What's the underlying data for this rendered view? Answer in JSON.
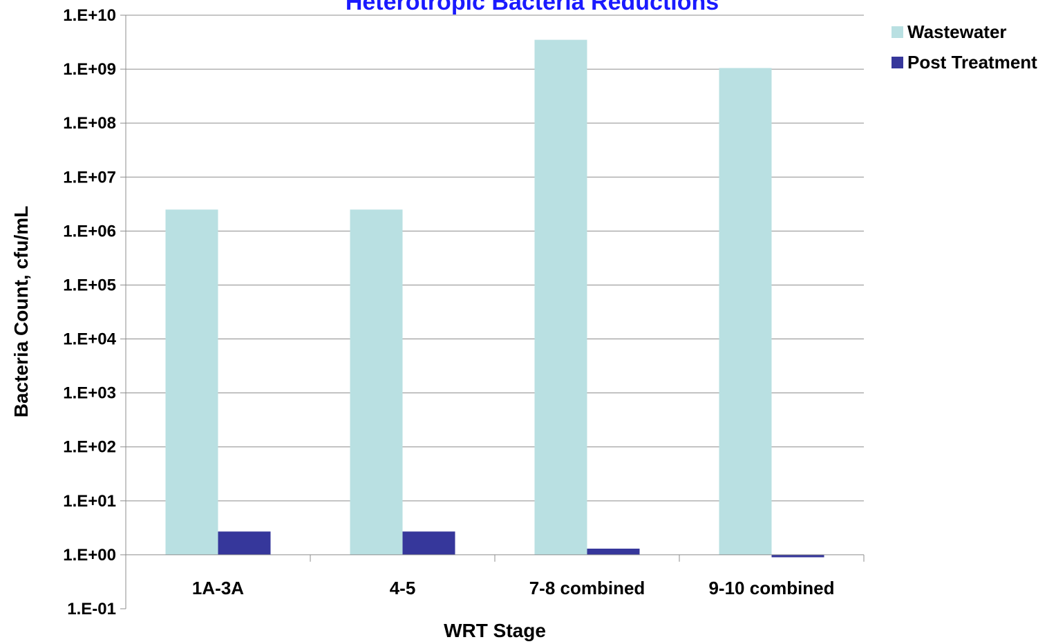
{
  "chart_data": {
    "type": "bar",
    "title": "Heterotropic Bacteria Reductions",
    "xlabel": "WRT Stage",
    "ylabel": "Bacteria Count, cfu/mL",
    "y_scale": "log",
    "ylim": [
      0.1,
      10000000000
    ],
    "y_ticks": [
      "1.E-01",
      "1.E+00",
      "1.E+01",
      "1.E+02",
      "1.E+03",
      "1.E+04",
      "1.E+05",
      "1.E+06",
      "1.E+07",
      "1.E+08",
      "1.E+09",
      "1.E+10"
    ],
    "categories": [
      "1A-3A",
      "4-5",
      "7-8 combined",
      "9-10 combined"
    ],
    "series": [
      {
        "name": "Wastewater",
        "values": [
          2500000,
          2500000,
          3500000000,
          1050000000
        ],
        "color": "#b9e0e2"
      },
      {
        "name": "Post Treatment",
        "values": [
          2.7,
          2.7,
          1.3,
          0.9
        ],
        "color": "#36379b"
      }
    ],
    "grid": true,
    "legend_position": "right",
    "title_color": "#1a1aff"
  }
}
